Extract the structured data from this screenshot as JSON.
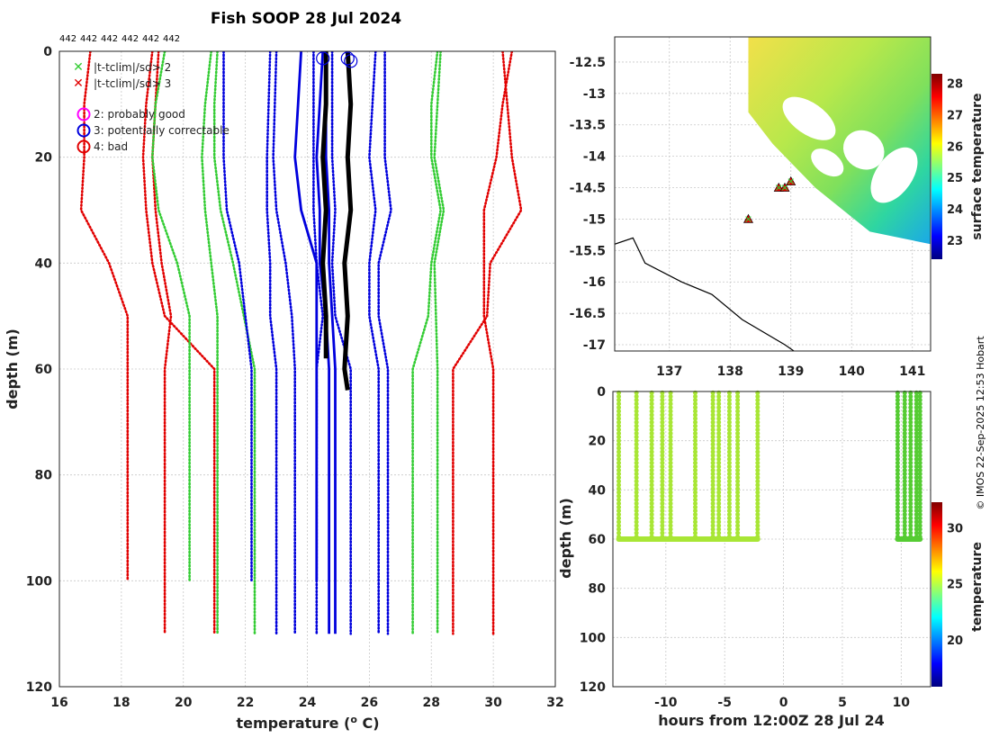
{
  "title": "Fish SOOP 28 Jul 2024",
  "count_labels": [
    "442",
    "442",
    "442",
    "442",
    "442",
    "442"
  ],
  "credit": "© IMOS 22-Sep-2025 12:53 Hobart",
  "legend": {
    "green_x": "|t-tclim|/sd> 2",
    "red_x": "|t-tclim|/sd> 3",
    "flag2": "2: probably good",
    "flag3": "3: potentially correctable",
    "flag4": "4: bad"
  },
  "colors": {
    "red": "#e10000",
    "green": "#33cc33",
    "blue": "#0000dd",
    "black": "#000000",
    "magenta": "#ff00ff"
  },
  "chart_data": [
    {
      "type": "line",
      "name": "profile",
      "xlabel": "temperature (o C)",
      "ylabel": "depth (m)",
      "xlim": [
        16,
        32
      ],
      "ylim": [
        120,
        0
      ],
      "xticks": [
        16,
        18,
        20,
        22,
        24,
        26,
        28,
        30,
        32
      ],
      "yticks": [
        0,
        20,
        40,
        60,
        80,
        100,
        120
      ],
      "series": [
        {
          "name": "clim +3sd (a)",
          "color": "red",
          "style": "dotted",
          "points": [
            [
              30.3,
              0
            ],
            [
              30.6,
              20
            ],
            [
              30.9,
              30
            ],
            [
              29.9,
              40
            ],
            [
              29.8,
              50
            ],
            [
              28.7,
              60
            ],
            [
              28.7,
              110
            ]
          ]
        },
        {
          "name": "clim +3sd (b)",
          "color": "red",
          "style": "dotted",
          "points": [
            [
              30.6,
              0
            ],
            [
              30.3,
              10
            ],
            [
              30.1,
              20
            ],
            [
              29.7,
              30
            ],
            [
              29.7,
              50
            ],
            [
              30.0,
              60
            ],
            [
              30.0,
              110
            ]
          ]
        },
        {
          "name": "clim -3sd (a)",
          "color": "red",
          "style": "dotted",
          "points": [
            [
              17.0,
              0
            ],
            [
              16.8,
              10
            ],
            [
              16.8,
              20
            ],
            [
              16.7,
              30
            ],
            [
              17.6,
              40
            ],
            [
              18.2,
              50
            ],
            [
              18.2,
              100
            ]
          ]
        },
        {
          "name": "clim -3sd (b)",
          "color": "red",
          "style": "dotted",
          "points": [
            [
              19.0,
              0
            ],
            [
              18.8,
              10
            ],
            [
              18.7,
              20
            ],
            [
              18.8,
              30
            ],
            [
              19.0,
              40
            ],
            [
              19.4,
              50
            ],
            [
              21.0,
              60
            ],
            [
              21.0,
              110
            ]
          ]
        },
        {
          "name": "clim -3sd (c)",
          "color": "red",
          "style": "dotted",
          "points": [
            [
              19.2,
              0
            ],
            [
              19.0,
              20
            ],
            [
              19.1,
              30
            ],
            [
              19.3,
              40
            ],
            [
              19.6,
              50
            ],
            [
              19.4,
              60
            ],
            [
              19.4,
              110
            ]
          ]
        },
        {
          "name": "clim +2sd (a)",
          "color": "green",
          "style": "dotted",
          "points": [
            [
              28.2,
              0
            ],
            [
              28.0,
              10
            ],
            [
              28.0,
              20
            ],
            [
              28.3,
              30
            ],
            [
              28.0,
              40
            ],
            [
              27.9,
              50
            ],
            [
              27.4,
              60
            ],
            [
              27.4,
              110
            ]
          ]
        },
        {
          "name": "clim +2sd (b)",
          "color": "green",
          "style": "dotted",
          "points": [
            [
              28.3,
              0
            ],
            [
              28.2,
              10
            ],
            [
              28.1,
              20
            ],
            [
              28.4,
              30
            ],
            [
              28.1,
              40
            ],
            [
              28.2,
              60
            ],
            [
              28.2,
              110
            ]
          ]
        },
        {
          "name": "clim -2sd (a)",
          "color": "green",
          "style": "dotted",
          "points": [
            [
              20.9,
              0
            ],
            [
              20.7,
              10
            ],
            [
              20.6,
              20
            ],
            [
              20.7,
              30
            ],
            [
              20.9,
              40
            ],
            [
              21.1,
              50
            ],
            [
              21.1,
              110
            ]
          ]
        },
        {
          "name": "clim -2sd (b)",
          "color": "green",
          "style": "dotted",
          "points": [
            [
              19.4,
              0
            ],
            [
              19.1,
              10
            ],
            [
              19.0,
              20
            ],
            [
              19.2,
              30
            ],
            [
              19.8,
              40
            ],
            [
              20.2,
              50
            ],
            [
              20.2,
              100
            ]
          ]
        },
        {
          "name": "clim -2sd (c)",
          "color": "green",
          "style": "dotted",
          "points": [
            [
              21.1,
              0
            ],
            [
              21.0,
              10
            ],
            [
              21.0,
              20
            ],
            [
              21.2,
              30
            ],
            [
              21.6,
              40
            ],
            [
              22.3,
              60
            ],
            [
              22.3,
              110
            ]
          ]
        },
        {
          "name": "clim blue (a)",
          "color": "blue",
          "style": "dotted",
          "points": [
            [
              22.8,
              0
            ],
            [
              22.7,
              20
            ],
            [
              22.7,
              30
            ],
            [
              22.8,
              40
            ],
            [
              22.8,
              50
            ],
            [
              23.0,
              60
            ],
            [
              23.0,
              110
            ]
          ]
        },
        {
          "name": "clim blue (b)",
          "color": "blue",
          "style": "dotted",
          "points": [
            [
              21.3,
              0
            ],
            [
              21.3,
              20
            ],
            [
              21.4,
              30
            ],
            [
              21.8,
              40
            ],
            [
              22.0,
              50
            ],
            [
              22.2,
              60
            ],
            [
              22.2,
              100
            ]
          ]
        },
        {
          "name": "clim blue (c)",
          "color": "blue",
          "style": "dotted",
          "points": [
            [
              23.0,
              0
            ],
            [
              22.9,
              20
            ],
            [
              23.0,
              30
            ],
            [
              23.3,
              40
            ],
            [
              23.5,
              50
            ],
            [
              23.6,
              60
            ],
            [
              23.6,
              110
            ]
          ]
        },
        {
          "name": "clim blue (d)",
          "color": "blue",
          "style": "dotted",
          "points": [
            [
              26.2,
              0
            ],
            [
              26.0,
              20
            ],
            [
              26.2,
              30
            ],
            [
              26.0,
              40
            ],
            [
              26.0,
              50
            ],
            [
              26.3,
              60
            ],
            [
              26.3,
              110
            ]
          ]
        },
        {
          "name": "clim blue (e)",
          "color": "blue",
          "style": "dotted",
          "points": [
            [
              26.5,
              0
            ],
            [
              26.5,
              20
            ],
            [
              26.7,
              30
            ],
            [
              26.3,
              40
            ],
            [
              26.3,
              50
            ],
            [
              26.6,
              60
            ],
            [
              26.6,
              110
            ]
          ]
        },
        {
          "name": "clim blue (f)",
          "color": "blue",
          "style": "dotted",
          "points": [
            [
              24.2,
              0
            ],
            [
              24.2,
              20
            ],
            [
              24.2,
              30
            ],
            [
              24.3,
              40
            ],
            [
              24.5,
              50
            ],
            [
              24.3,
              60
            ],
            [
              24.3,
              110
            ]
          ]
        },
        {
          "name": "clim blue (g)",
          "color": "blue",
          "style": "dotted",
          "points": [
            [
              24.8,
              0
            ],
            [
              24.8,
              20
            ],
            [
              24.9,
              30
            ],
            [
              24.8,
              40
            ],
            [
              24.9,
              50
            ],
            [
              25.4,
              60
            ],
            [
              25.4,
              110
            ]
          ]
        },
        {
          "name": "mean (a)",
          "color": "blue",
          "style": "solid",
          "points": [
            [
              24.5,
              0
            ],
            [
              24.4,
              10
            ],
            [
              24.3,
              20
            ],
            [
              24.4,
              30
            ],
            [
              24.4,
              40
            ],
            [
              24.6,
              50
            ],
            [
              24.7,
              60
            ],
            [
              24.7,
              110
            ]
          ]
        },
        {
          "name": "mean (b)",
          "color": "blue",
          "style": "solid",
          "points": [
            [
              23.8,
              0
            ],
            [
              23.7,
              10
            ],
            [
              23.6,
              20
            ],
            [
              23.8,
              30
            ],
            [
              24.3,
              40
            ],
            [
              24.3,
              50
            ],
            [
              24.3,
              100
            ]
          ]
        },
        {
          "name": "mean (c)",
          "color": "blue",
          "style": "solid",
          "points": [
            [
              24.6,
              0
            ],
            [
              24.6,
              20
            ],
            [
              24.7,
              30
            ],
            [
              24.7,
              40
            ],
            [
              24.8,
              50
            ],
            [
              24.9,
              60
            ],
            [
              24.9,
              110
            ]
          ]
        },
        {
          "name": "obs (a)",
          "color": "black",
          "style": "thick",
          "points": [
            [
              24.6,
              0
            ],
            [
              24.6,
              10
            ],
            [
              24.5,
              20
            ],
            [
              24.6,
              30
            ],
            [
              24.5,
              40
            ],
            [
              24.6,
              50
            ],
            [
              24.6,
              58
            ]
          ]
        },
        {
          "name": "obs (b)",
          "color": "black",
          "style": "thick",
          "points": [
            [
              25.3,
              0
            ],
            [
              25.4,
              10
            ],
            [
              25.3,
              20
            ],
            [
              25.4,
              30
            ],
            [
              25.2,
              40
            ],
            [
              25.3,
              50
            ],
            [
              25.2,
              60
            ],
            [
              25.3,
              64
            ]
          ]
        }
      ],
      "flag_markers": [
        {
          "flag": 3,
          "temp": 24.5,
          "depth": 1
        },
        {
          "flag": 3,
          "temp": 25.3,
          "depth": 1
        },
        {
          "flag": 3,
          "temp": 25.4,
          "depth": 1.5
        }
      ]
    },
    {
      "type": "heatmap",
      "name": "map",
      "xlim": [
        136.1,
        141.3
      ],
      "ylim": [
        -17.1,
        -12.1
      ],
      "xticks": [
        137,
        138,
        139,
        140,
        141
      ],
      "yticks": [
        -12.5,
        -13,
        -13.5,
        -14,
        -14.5,
        -15,
        -15.5,
        -16,
        -16.5,
        -17
      ],
      "colorbar_label": "surface temperature",
      "colorbar_range": [
        22.4,
        28.3
      ],
      "colorbar_ticks": [
        23,
        24,
        25,
        26,
        27,
        28
      ],
      "sst_region": [
        [
          138.3,
          -12.1
        ],
        [
          141.3,
          -12.1
        ],
        [
          141.3,
          -15.4
        ],
        [
          140.3,
          -15.2
        ],
        [
          139.4,
          -14.5
        ],
        [
          138.7,
          -13.8
        ],
        [
          138.3,
          -13.3
        ]
      ],
      "stations": [
        [
          138.3,
          -15.0
        ],
        [
          138.8,
          -14.5
        ],
        [
          138.9,
          -14.5
        ],
        [
          139.0,
          -14.4
        ]
      ],
      "coast": [
        [
          136.1,
          -15.4
        ],
        [
          136.4,
          -15.3
        ],
        [
          136.6,
          -15.7
        ],
        [
          137.2,
          -16.0
        ],
        [
          137.7,
          -16.2
        ],
        [
          138.2,
          -16.6
        ],
        [
          138.9,
          -17.0
        ],
        [
          139.2,
          -17.2
        ]
      ]
    },
    {
      "type": "scatter",
      "name": "time-depth",
      "xlabel": "hours from 12:00Z 28 Jul 24",
      "ylabel": "depth (m)",
      "xlim": [
        -14.5,
        12.5
      ],
      "ylim": [
        120,
        0
      ],
      "xticks": [
        -10,
        -5,
        0,
        5,
        10
      ],
      "yticks": [
        0,
        20,
        40,
        60,
        80,
        100,
        120
      ],
      "colorbar_label": "temperature",
      "colorbar_range": [
        15.8,
        32.3
      ],
      "colorbar_ticks": [
        20,
        25,
        30
      ],
      "casts": [
        -14.0,
        -12.5,
        -11.2,
        -10.3,
        -9.6,
        -7.5,
        -6.0,
        -5.5,
        -4.6,
        -3.9,
        -2.2,
        9.7,
        10.3,
        10.8,
        11.3,
        11.6
      ]
    }
  ]
}
